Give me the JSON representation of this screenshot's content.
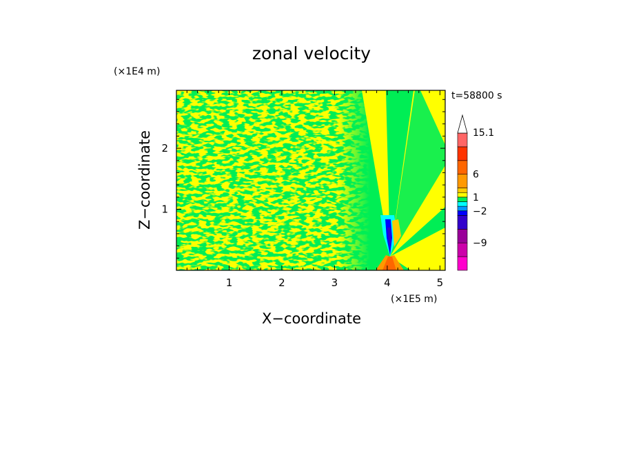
{
  "chart_data": {
    "type": "heatmap",
    "title": "zonal velocity",
    "xlabel": "X−coordinate",
    "ylabel": "Z−coordinate",
    "x_unit": "(×1E5 m)",
    "y_unit": "(×1E4 m)",
    "annotation": "t=58800 s",
    "xlim": [
      0.0,
      5.1
    ],
    "ylim": [
      0.0,
      2.95
    ],
    "x_ticks": [
      1,
      2,
      3,
      4,
      5
    ],
    "y_ticks": [
      1,
      2
    ],
    "x_tick_labels": [
      "1",
      "2",
      "3",
      "4",
      "5"
    ],
    "y_tick_labels": [
      "1",
      "2"
    ],
    "colorbar": {
      "levels": [
        -15,
        -12,
        -9,
        -6,
        -3,
        -2,
        -1,
        0,
        1,
        2,
        3,
        6,
        9,
        12,
        15.1
      ],
      "colors": [
        "#ff00cc",
        "#cc00aa",
        "#990099",
        "#3300cc",
        "#0000ff",
        "#0099ff",
        "#00ffff",
        "#00ee55",
        "#ffff00",
        "#ffcc00",
        "#ff9900",
        "#ff6600",
        "#ff3300",
        "#ff6666",
        "#ffbbcc"
      ],
      "labels": [
        "15.1",
        "6",
        "1",
        "−2",
        "−9"
      ],
      "label_values": [
        15.1,
        6,
        1,
        -2,
        -9
      ],
      "extend": "max"
    }
  }
}
